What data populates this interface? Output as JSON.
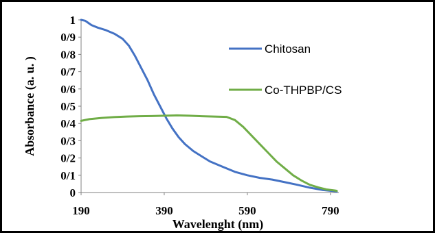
{
  "chart_data": {
    "type": "line",
    "title": "",
    "xlabel": "Wavelenght (nm)",
    "ylabel": "Absorbance (a. u. )",
    "xlim": [
      190,
      810
    ],
    "ylim": [
      0,
      1
    ],
    "x_ticks": [
      190,
      390,
      590,
      790
    ],
    "x_tick_labels": [
      "190",
      "390",
      "590",
      "790"
    ],
    "y_ticks": [
      0,
      0.1,
      0.2,
      0.3,
      0.4,
      0.5,
      0.6,
      0.7,
      0.8,
      0.9,
      1
    ],
    "y_tick_labels": [
      "0",
      "0/1",
      "0/2",
      "0/3",
      "0/4",
      "0/5",
      "0/6",
      "0/7",
      "0/8",
      "0/9",
      "1"
    ],
    "grid": false,
    "legend_position": "right",
    "series": [
      {
        "name": "Chitosan",
        "color": "#4472C4",
        "x": [
          190,
          200,
          215,
          230,
          250,
          270,
          290,
          305,
          320,
          335,
          350,
          365,
          380,
          395,
          410,
          425,
          440,
          460,
          480,
          500,
          530,
          560,
          590,
          620,
          650,
          680,
          710,
          740,
          770,
          800,
          805
        ],
        "y": [
          1.0,
          0.995,
          0.97,
          0.955,
          0.94,
          0.92,
          0.89,
          0.85,
          0.79,
          0.72,
          0.65,
          0.57,
          0.5,
          0.43,
          0.37,
          0.32,
          0.28,
          0.24,
          0.21,
          0.18,
          0.15,
          0.12,
          0.1,
          0.085,
          0.075,
          0.06,
          0.045,
          0.028,
          0.015,
          0.008,
          0.005
        ]
      },
      {
        "name": "Co-THPBP/CS",
        "color": "#70AD47",
        "x": [
          190,
          210,
          240,
          270,
          300,
          330,
          360,
          390,
          420,
          450,
          480,
          510,
          540,
          560,
          580,
          600,
          620,
          640,
          660,
          680,
          700,
          720,
          740,
          760,
          780,
          800,
          805
        ],
        "y": [
          0.415,
          0.425,
          0.432,
          0.437,
          0.44,
          0.442,
          0.443,
          0.445,
          0.447,
          0.445,
          0.442,
          0.44,
          0.438,
          0.42,
          0.38,
          0.33,
          0.28,
          0.23,
          0.18,
          0.14,
          0.1,
          0.07,
          0.045,
          0.03,
          0.018,
          0.012,
          0.01
        ]
      }
    ]
  }
}
